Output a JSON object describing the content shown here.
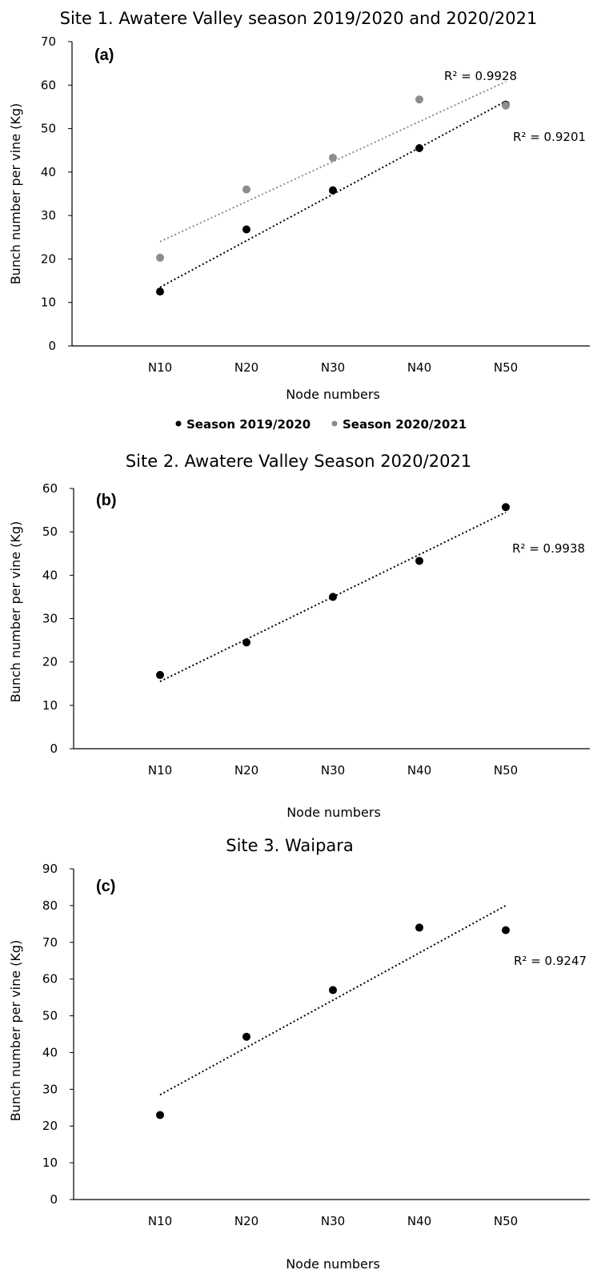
{
  "chart_data": [
    {
      "type": "scatter",
      "title": "Site 1. Awatere Valley season 2019/2020 and 2020/2021",
      "panel_label": "(a)",
      "xlabel": "Node numbers",
      "ylabel": "Bunch number  per vine (Kg)",
      "categories": [
        "N10",
        "N20",
        "N30",
        "N40",
        "N50"
      ],
      "ylim": [
        0,
        70
      ],
      "yticks": [
        0,
        10,
        20,
        30,
        40,
        50,
        60,
        70
      ],
      "legend_position": "bottom",
      "series": [
        {
          "name": "Season 2019/2020",
          "color": "#000000",
          "values": [
            12.5,
            26.8,
            35.8,
            45.5,
            55.5
          ],
          "trendline": {
            "start": 13.5,
            "end": 56.3,
            "r2_label": "R² = 0.9928"
          }
        },
        {
          "name": "Season 2020/2021",
          "color": "#8c8c8c",
          "values": [
            20.3,
            36.0,
            43.3,
            56.7,
            55.3
          ],
          "trendline": {
            "start": 24.0,
            "end": 60.8,
            "r2_label": "R² = 0.9201"
          }
        }
      ]
    },
    {
      "type": "scatter",
      "title": "Site 2. Awatere Valley Season 2020/2021",
      "panel_label": "(b)",
      "xlabel": "Node numbers",
      "ylabel": "Bunch number  per vine (Kg)",
      "categories": [
        "N10",
        "N20",
        "N30",
        "N40",
        "N50"
      ],
      "ylim": [
        0,
        60
      ],
      "yticks": [
        0,
        10,
        20,
        30,
        40,
        50,
        60
      ],
      "series": [
        {
          "color": "#000000",
          "values": [
            17.0,
            24.5,
            35.0,
            43.3,
            55.7
          ],
          "trendline": {
            "start": 15.5,
            "end": 54.5,
            "r2_label": "R² = 0.9938"
          }
        }
      ]
    },
    {
      "type": "scatter",
      "title": "Site 3. Waipara",
      "panel_label": "(c)",
      "xlabel": "Node numbers",
      "ylabel": "Bunch number  per vine (Kg)",
      "categories": [
        "N10",
        "N20",
        "N30",
        "N40",
        "N50"
      ],
      "ylim": [
        0,
        90
      ],
      "yticks": [
        0,
        10,
        20,
        30,
        40,
        50,
        60,
        70,
        80,
        90
      ],
      "series": [
        {
          "color": "#000000",
          "values": [
            23.0,
            44.3,
            57.0,
            74.0,
            73.3
          ],
          "trendline": {
            "start": 28.5,
            "end": 80.0,
            "r2_label": "R² = 0.9247"
          }
        }
      ]
    }
  ]
}
